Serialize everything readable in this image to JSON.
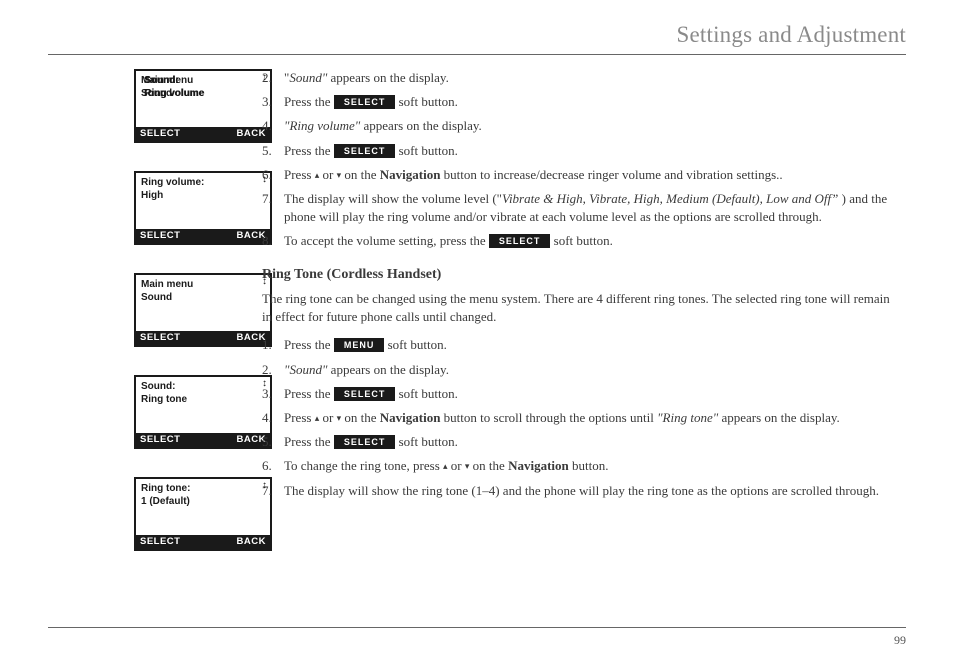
{
  "header": {
    "title": "Settings and Adjustment"
  },
  "page_number": "99",
  "screens": [
    {
      "line1": "Main menu",
      "line2": "Sound",
      "overlay1": "Sound:",
      "overlay2": "Ring volume",
      "arrows": "↕",
      "soft_left": "SELECT",
      "soft_right": "BACK"
    },
    {
      "line1": "Ring volume:",
      "line2": "High",
      "arrows": "↕",
      "soft_left": "SELECT",
      "soft_right": "BACK"
    },
    {
      "line1": "Main menu",
      "line2": "Sound",
      "arrows": "↕",
      "soft_left": "SELECT",
      "soft_right": "BACK"
    },
    {
      "line1": "Sound:",
      "line2": "Ring tone",
      "arrows": "↕",
      "soft_left": "SELECT",
      "soft_right": "BACK"
    },
    {
      "line1": "Ring tone:",
      "line2": "1 (Default)",
      "arrows": "↕",
      "soft_left": "SELECT",
      "soft_right": "BACK"
    }
  ],
  "pills": {
    "select": "SELECT",
    "menu": "MENU"
  },
  "icons": {
    "up": "▴",
    "down": "▾"
  },
  "section1_steps": {
    "s2_pre": "\"",
    "s2_em": "Sound\"",
    "s2_post": " appears on the display.",
    "s3_pre": "Press the ",
    "s3_post": " soft button.",
    "s4_em": "\"Ring volume\"",
    "s4_post": " appears on the display.",
    "s5_pre": "Press the ",
    "s5_post": " soft button.",
    "s6_pre": "Press ",
    "s6_mid": " or  ",
    "s6_post1": " on the ",
    "s6_nav": "Navigation",
    "s6_post2": " button to increase/decrease ringer volume and vibration settings..",
    "s7_pre": "The display will show the volume level (\"",
    "s7_em": "Vibrate & High, Vibrate, High, Medium (Default), Low and Off”",
    "s7_post": " ) and the phone will play the ring volume and/or vibrate at each volume level as the options are scrolled through.",
    "s8_pre": "To accept the volume setting, press the ",
    "s8_post": " soft button."
  },
  "subhead": "Ring Tone (Cordless Handset)",
  "intro_para": "The ring tone can be changed using the menu system. There are 4 different ring tones. The selected ring tone will remain in effect for future phone calls until changed.",
  "section2_steps": {
    "s1_pre": "Press the ",
    "s1_post": " soft button.",
    "s2_em": " \"Sound\"",
    "s2_post": " appears on the display.",
    "s3_pre": "Press the ",
    "s3_post": " soft button.",
    "s4_pre": "Press ",
    "s4_mid": "  or ",
    "s4_post1": " on the ",
    "s4_nav": "Navigation",
    "s4_post2": " button to scroll through the options until ",
    "s4_em": "\"Ring tone\"",
    "s4_post3": " appears on the display.",
    "s5_pre": "Press the ",
    "s5_post": " soft button.",
    "s6_pre": "To change the ring tone, press ",
    "s6_mid": "  or ",
    "s6_post1": " on the ",
    "s6_nav": "Navigation",
    "s6_post2": " button.",
    "s7": "The display will show the ring tone (1–4) and the phone will play the ring tone as the options are scrolled through."
  }
}
